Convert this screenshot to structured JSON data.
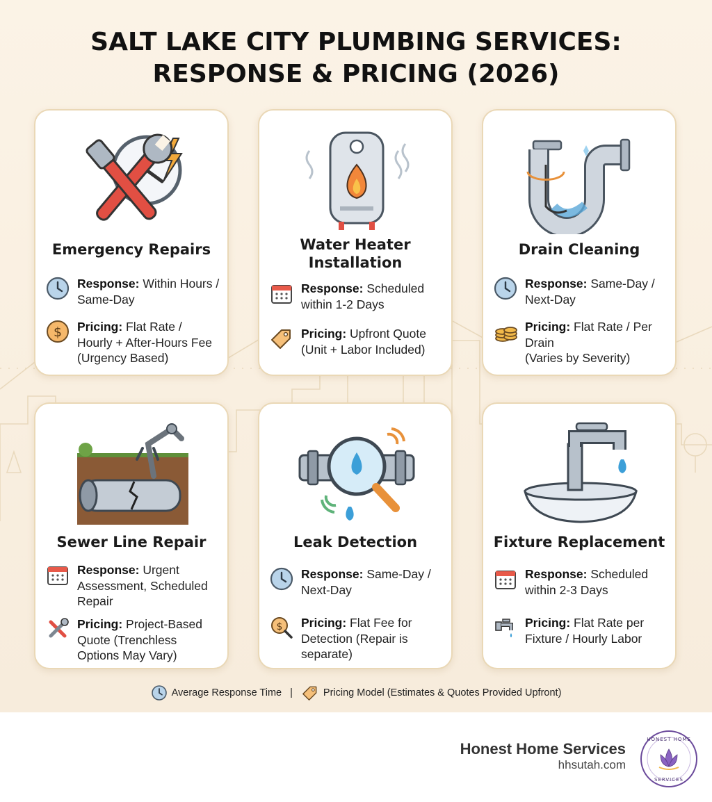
{
  "title": {
    "line1": "SALT LAKE CITY PLUMBING SERVICES:",
    "line2": "RESPONSE & PRICING (2026)"
  },
  "services": [
    {
      "name": "Emergency Repairs",
      "icon": "wrench-clock-icon",
      "response_label": "Response:",
      "response": "Within Hours / Same-Day",
      "response_icon": "clock-icon",
      "pricing_label": "Pricing:",
      "pricing": "Flat Rate / Hourly + After-Hours Fee (Urgency Based)",
      "pricing_icon": "dollar-coin-icon"
    },
    {
      "name": "Water Heater Installation",
      "name_line1": "Water Heater",
      "name_line2": "Installation",
      "icon": "water-heater-icon",
      "response_label": "Response:",
      "response": "Scheduled within 1-2 Days",
      "response_icon": "calendar-icon",
      "pricing_label": "Pricing:",
      "pricing": "Upfront Quote (Unit + Labor Included)",
      "pricing_icon": "price-tag-icon"
    },
    {
      "name": "Drain Cleaning",
      "icon": "drain-pipe-icon",
      "response_label": "Response:",
      "response": "Same-Day / Next-Day",
      "response_icon": "clock-icon",
      "pricing_label": "Pricing:",
      "pricing_line1": "Flat Rate / Per Drain",
      "pricing_line2": "(Varies by Severity)",
      "pricing_icon": "coin-stack-icon"
    },
    {
      "name": "Sewer Line Repair",
      "icon": "sewer-pipe-icon",
      "response_label": "Response:",
      "response": "Urgent Assessment, Scheduled Repair",
      "response_icon": "calendar-icon",
      "pricing_label": "Pricing:",
      "pricing": "Project-Based Quote (Trenchless Options May Vary)",
      "pricing_icon": "tools-icon"
    },
    {
      "name": "Leak Detection",
      "icon": "leak-magnifier-icon",
      "response_label": "Response:",
      "response": "Same-Day / Next-Day",
      "response_icon": "clock-icon",
      "pricing_label": "Pricing:",
      "pricing": "Flat Fee for Detection (Repair is separate)",
      "pricing_icon": "dollar-search-icon"
    },
    {
      "name": "Fixture Replacement",
      "icon": "faucet-sink-icon",
      "response_label": "Response:",
      "response": "Scheduled within 2-3 Days",
      "response_icon": "calendar-icon",
      "pricing_label": "Pricing:",
      "pricing": "Flat Rate per Fixture / Hourly Labor",
      "pricing_icon": "faucet-icon"
    }
  ],
  "legend": {
    "response": "Average Response Time",
    "separator": "|",
    "pricing": "Pricing Model (Estimates & Quotes Provided Upfront)"
  },
  "footer": {
    "company": "Honest Home Services",
    "url": "hhsutah.com",
    "logo_text": "HONEST HOME SERVICES"
  },
  "colors": {
    "background": "#fbf3e6",
    "card_border": "#ead8b6",
    "accent_orange": "#e8913a",
    "accent_red": "#d9534a",
    "steel": "#9aa6b2",
    "clock_blue": "#b9d4ea",
    "logo_purple": "#6b4a9b"
  }
}
